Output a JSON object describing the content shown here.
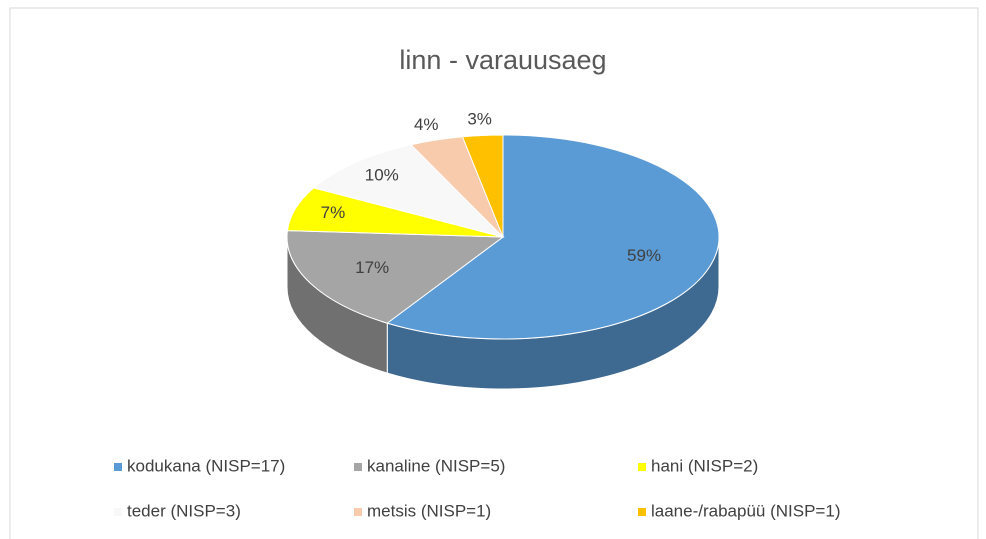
{
  "chart_data": {
    "type": "pie",
    "title": "linn - varauusaeg",
    "categories": [
      "kodukana (NISP=17)",
      "kanaline (NISP=5)",
      "hani (NISP=2)",
      "teder (NISP=3)",
      "metsis (NISP=1)",
      "laane-/rabapüü (NISP=1)"
    ],
    "values": [
      59,
      17,
      7,
      10,
      4,
      3
    ],
    "value_labels": [
      "59%",
      "17%",
      "7%",
      "10%",
      "4%",
      "3%"
    ],
    "colors": [
      "#5b9bd5",
      "#a5a5a5",
      "#ffff00",
      "#f8f8f8",
      "#f8cbad",
      "#ffc000"
    ],
    "legend": "bottom"
  }
}
